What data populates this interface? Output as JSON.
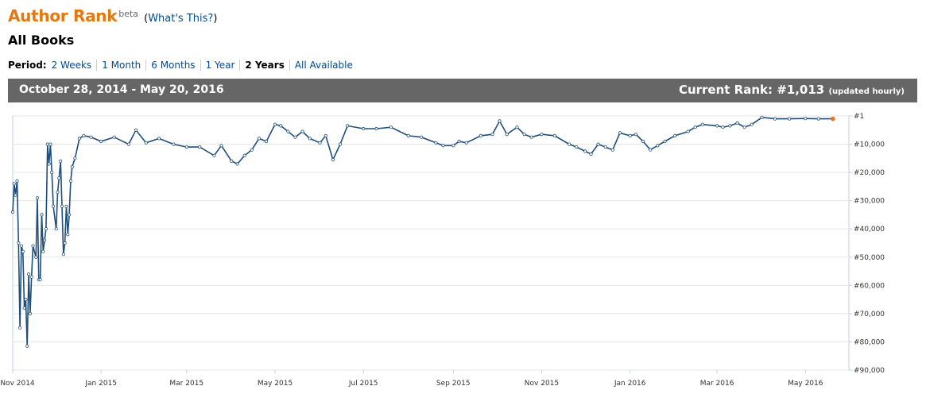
{
  "header": {
    "title": "Author Rank",
    "beta": "beta",
    "whats_open": "(",
    "whats_link": "What's This?",
    "whats_close": ")",
    "subtitle": "All Books"
  },
  "period": {
    "label": "Period:",
    "options": [
      "2 Weeks",
      "1 Month",
      "6 Months",
      "1 Year",
      "2 Years",
      "All Available"
    ],
    "selected": "2 Years"
  },
  "summary": {
    "date_range": "October 28, 2014 - May 20, 2016",
    "current_rank_label": "Current Rank: #1,013",
    "updated_note": "(updated hourly)"
  },
  "colors": {
    "title": "#e47911",
    "line": "#1f4e7a",
    "last_point": "#e8751a",
    "bar": "#666666"
  },
  "chart_data": {
    "type": "line",
    "y_inverted": true,
    "ylim": [
      1,
      90000
    ],
    "yticks": [
      1,
      10000,
      20000,
      30000,
      40000,
      50000,
      60000,
      70000,
      80000,
      90000
    ],
    "ytick_labels": [
      "#1",
      "#10,000",
      "#20,000",
      "#30,000",
      "#40,000",
      "#50,000",
      "#60,000",
      "#70,000",
      "#80,000",
      "#90,000"
    ],
    "xlim": [
      "2014-11-01",
      "2016-05-31"
    ],
    "xticks": [
      "2014-11-01",
      "2015-01-01",
      "2015-03-01",
      "2015-05-01",
      "2015-07-01",
      "2015-09-01",
      "2015-11-01",
      "2016-01-01",
      "2016-03-01",
      "2016-05-01"
    ],
    "xtick_labels": [
      "Nov 2014",
      "Jan 2015",
      "Mar 2015",
      "May 2015",
      "Jul 2015",
      "Sep 2015",
      "Nov 2015",
      "Jan 2016",
      "Mar 2016",
      "May 2016"
    ],
    "series": [
      {
        "points": [
          [
            "2014-11-01",
            34000
          ],
          [
            "2014-11-02",
            24000
          ],
          [
            "2014-11-03",
            28000
          ],
          [
            "2014-11-04",
            23000
          ],
          [
            "2014-11-05",
            45000
          ],
          [
            "2014-11-06",
            75000
          ],
          [
            "2014-11-07",
            46000
          ],
          [
            "2014-11-08",
            48000
          ],
          [
            "2014-11-09",
            68000
          ],
          [
            "2014-11-10",
            65000
          ],
          [
            "2014-11-11",
            81500
          ],
          [
            "2014-11-12",
            56000
          ],
          [
            "2014-11-13",
            70000
          ],
          [
            "2014-11-14",
            57000
          ],
          [
            "2014-11-15",
            46000
          ],
          [
            "2014-11-17",
            50000
          ],
          [
            "2014-11-18",
            29000
          ],
          [
            "2014-11-19",
            58000
          ],
          [
            "2014-11-20",
            58000
          ],
          [
            "2014-11-21",
            35000
          ],
          [
            "2014-11-22",
            48000
          ],
          [
            "2014-11-23",
            44000
          ],
          [
            "2014-11-24",
            40000
          ],
          [
            "2014-11-25",
            10000
          ],
          [
            "2014-11-26",
            17000
          ],
          [
            "2014-11-27",
            10000
          ],
          [
            "2014-11-28",
            20000
          ],
          [
            "2014-11-29",
            32000
          ],
          [
            "2014-12-01",
            40000
          ],
          [
            "2014-12-02",
            27000
          ],
          [
            "2014-12-03",
            22000
          ],
          [
            "2014-12-04",
            16000
          ],
          [
            "2014-12-05",
            32000
          ],
          [
            "2014-12-06",
            49000
          ],
          [
            "2014-12-07",
            45000
          ],
          [
            "2014-12-08",
            32000
          ],
          [
            "2014-12-09",
            42000
          ],
          [
            "2014-12-10",
            35000
          ],
          [
            "2014-12-11",
            23000
          ],
          [
            "2014-12-12",
            18000
          ],
          [
            "2014-12-14",
            15000
          ],
          [
            "2014-12-17",
            8000
          ],
          [
            "2014-12-20",
            7000
          ],
          [
            "2014-12-25",
            7500
          ],
          [
            "2015-01-01",
            9000
          ],
          [
            "2015-01-10",
            7500
          ],
          [
            "2015-01-20",
            10000
          ],
          [
            "2015-01-25",
            5000
          ],
          [
            "2015-02-01",
            9500
          ],
          [
            "2015-02-10",
            8000
          ],
          [
            "2015-02-20",
            10000
          ],
          [
            "2015-03-01",
            11000
          ],
          [
            "2015-03-10",
            11000
          ],
          [
            "2015-03-20",
            14000
          ],
          [
            "2015-03-25",
            10500
          ],
          [
            "2015-04-01",
            16000
          ],
          [
            "2015-04-05",
            17000
          ],
          [
            "2015-04-10",
            14000
          ],
          [
            "2015-04-15",
            12000
          ],
          [
            "2015-04-20",
            8000
          ],
          [
            "2015-04-25",
            9000
          ],
          [
            "2015-05-01",
            3000
          ],
          [
            "2015-05-05",
            3500
          ],
          [
            "2015-05-10",
            5500
          ],
          [
            "2015-05-15",
            7500
          ],
          [
            "2015-05-20",
            5500
          ],
          [
            "2015-05-25",
            8000
          ],
          [
            "2015-06-01",
            9500
          ],
          [
            "2015-06-05",
            7000
          ],
          [
            "2015-06-10",
            15500
          ],
          [
            "2015-06-15",
            10000
          ],
          [
            "2015-06-20",
            3500
          ],
          [
            "2015-07-01",
            4500
          ],
          [
            "2015-07-10",
            4500
          ],
          [
            "2015-07-20",
            4000
          ],
          [
            "2015-08-01",
            7000
          ],
          [
            "2015-08-10",
            7500
          ],
          [
            "2015-08-20",
            9500
          ],
          [
            "2015-08-25",
            10500
          ],
          [
            "2015-09-01",
            10500
          ],
          [
            "2015-09-05",
            9000
          ],
          [
            "2015-09-10",
            9500
          ],
          [
            "2015-09-20",
            7000
          ],
          [
            "2015-09-28",
            6500
          ],
          [
            "2015-10-03",
            1800
          ],
          [
            "2015-10-08",
            6500
          ],
          [
            "2015-10-15",
            4000
          ],
          [
            "2015-10-20",
            6500
          ],
          [
            "2015-10-25",
            7500
          ],
          [
            "2015-11-01",
            6500
          ],
          [
            "2015-11-10",
            7000
          ],
          [
            "2015-11-20",
            10000
          ],
          [
            "2015-11-25",
            11000
          ],
          [
            "2015-12-01",
            12500
          ],
          [
            "2015-12-05",
            13500
          ],
          [
            "2015-12-10",
            10000
          ],
          [
            "2015-12-15",
            11000
          ],
          [
            "2015-12-20",
            12000
          ],
          [
            "2015-12-25",
            6000
          ],
          [
            "2016-01-01",
            7000
          ],
          [
            "2016-01-05",
            6500
          ],
          [
            "2016-01-10",
            9000
          ],
          [
            "2016-01-15",
            12000
          ],
          [
            "2016-01-20",
            10500
          ],
          [
            "2016-01-25",
            9000
          ],
          [
            "2016-02-01",
            7000
          ],
          [
            "2016-02-10",
            5500
          ],
          [
            "2016-02-15",
            4000
          ],
          [
            "2016-02-20",
            3000
          ],
          [
            "2016-03-01",
            3500
          ],
          [
            "2016-03-05",
            4000
          ],
          [
            "2016-03-10",
            3500
          ],
          [
            "2016-03-15",
            2500
          ],
          [
            "2016-03-20",
            4000
          ],
          [
            "2016-03-25",
            3000
          ],
          [
            "2016-04-01",
            500
          ],
          [
            "2016-04-10",
            1000
          ],
          [
            "2016-04-20",
            1000
          ],
          [
            "2016-05-01",
            900
          ],
          [
            "2016-05-10",
            1000
          ],
          [
            "2016-05-20",
            1013
          ]
        ]
      }
    ]
  }
}
